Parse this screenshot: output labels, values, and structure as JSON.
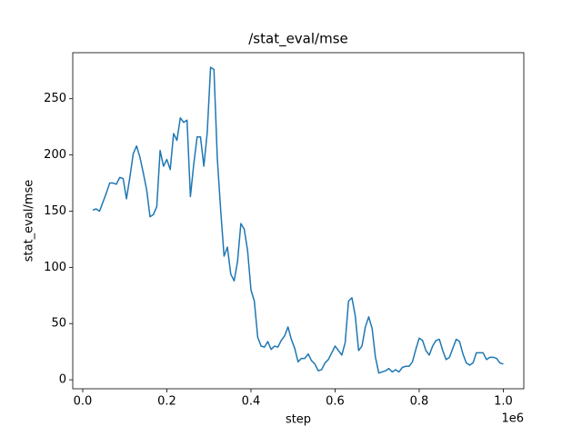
{
  "chart_data": {
    "type": "line",
    "title": "/stat_eval/mse",
    "x_label": "step",
    "y_label": "stat_eval/mse",
    "x_offset_label": "1e6",
    "x": [
      24000,
      32000,
      40000,
      48000,
      56000,
      64000,
      72000,
      80000,
      88000,
      96000,
      104000,
      112000,
      120000,
      128000,
      136000,
      144000,
      152000,
      160000,
      168000,
      176000,
      184000,
      192000,
      200000,
      208000,
      216000,
      224000,
      232000,
      240000,
      248000,
      256000,
      264000,
      272000,
      280000,
      288000,
      296000,
      304000,
      312000,
      320000,
      328000,
      336000,
      344000,
      352000,
      360000,
      368000,
      376000,
      384000,
      392000,
      400000,
      408000,
      416000,
      424000,
      432000,
      440000,
      448000,
      456000,
      464000,
      472000,
      480000,
      488000,
      496000,
      504000,
      512000,
      520000,
      528000,
      536000,
      544000,
      552000,
      560000,
      568000,
      576000,
      584000,
      592000,
      600000,
      608000,
      616000,
      624000,
      632000,
      640000,
      648000,
      656000,
      664000,
      672000,
      680000,
      688000,
      696000,
      704000,
      712000,
      720000,
      728000,
      736000,
      744000,
      752000,
      760000,
      768000,
      776000,
      784000,
      792000,
      800000,
      808000,
      816000,
      824000,
      832000,
      840000,
      848000,
      856000,
      864000,
      872000,
      880000,
      888000,
      896000,
      904000,
      912000,
      920000,
      928000,
      936000,
      944000,
      952000,
      960000,
      968000,
      976000,
      984000,
      992000,
      1000000
    ],
    "series": [
      {
        "name": "stat_eval/mse",
        "color": "#1f77b4",
        "values": [
          151,
          152,
          150,
          158,
          166,
          175,
          175,
          174,
          180,
          179,
          161,
          180,
          201,
          208,
          198,
          184,
          169,
          145,
          147,
          154,
          204,
          190,
          196,
          187,
          219,
          213,
          233,
          229,
          231,
          163,
          192,
          216,
          216,
          190,
          220,
          278,
          276,
          197,
          151,
          110,
          118,
          94,
          88,
          105,
          139,
          134,
          115,
          80,
          70,
          38,
          30,
          29,
          34,
          27,
          30,
          29,
          35,
          39,
          47,
          36,
          28,
          16,
          19,
          19,
          23,
          17,
          14,
          8,
          9,
          15,
          18,
          24,
          30,
          26,
          22,
          33,
          70,
          73,
          57,
          26,
          30,
          47,
          56,
          46,
          20,
          6,
          7,
          8,
          10,
          7,
          9,
          7,
          11,
          12,
          12,
          16,
          27,
          37,
          35,
          26,
          22,
          30,
          35,
          36,
          26,
          18,
          20,
          28,
          36,
          34,
          23,
          15,
          13,
          15,
          24,
          24,
          24,
          18,
          20,
          20,
          19,
          15,
          14
        ]
      }
    ],
    "xlim": [
      -23750,
      1048750
    ],
    "ylim": [
      -8,
      291
    ],
    "xticks": [
      {
        "value": 0,
        "label": "0.0"
      },
      {
        "value": 200000,
        "label": "0.2"
      },
      {
        "value": 400000,
        "label": "0.4"
      },
      {
        "value": 600000,
        "label": "0.6"
      },
      {
        "value": 800000,
        "label": "0.8"
      },
      {
        "value": 1000000,
        "label": "1.0"
      }
    ],
    "yticks": [
      0,
      50,
      100,
      150,
      200,
      250
    ],
    "grid": false
  }
}
